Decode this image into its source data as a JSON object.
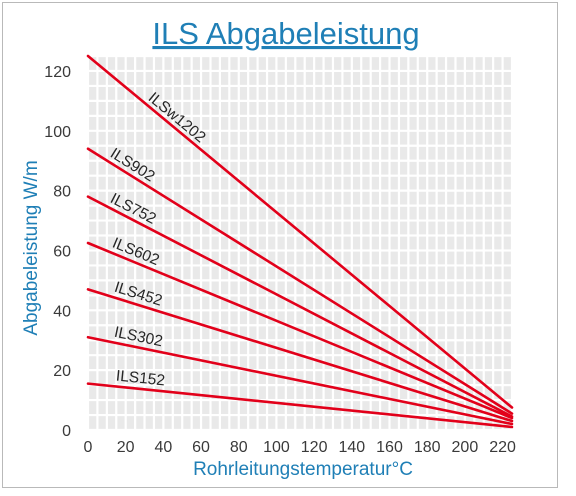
{
  "chart_data": {
    "type": "line",
    "title": "ILS Abgabeleistung",
    "xlabel": "Rohrleitungstemperatur°C",
    "ylabel": "Abgabeleistung W/m",
    "xlim": [
      0,
      225
    ],
    "ylim": [
      0,
      125
    ],
    "x_ticks": [
      "0",
      "20",
      "40",
      "60",
      "80",
      "100",
      "120",
      "140",
      "160",
      "180",
      "200",
      "220"
    ],
    "y_ticks": [
      "0",
      "20",
      "40",
      "60",
      "80",
      "100",
      "120"
    ],
    "grid": true,
    "legend": "none",
    "series": [
      {
        "name": "ILSw1202",
        "x": [
          0,
          225
        ],
        "y": [
          125,
          7.5
        ],
        "color": "#e2001a"
      },
      {
        "name": "ILS902",
        "x": [
          0,
          225
        ],
        "y": [
          94,
          5.5
        ],
        "color": "#e2001a"
      },
      {
        "name": "ILS752",
        "x": [
          0,
          225
        ],
        "y": [
          78,
          4.5
        ],
        "color": "#e2001a"
      },
      {
        "name": "ILS602",
        "x": [
          0,
          225
        ],
        "y": [
          62.5,
          4
        ],
        "color": "#e2001a"
      },
      {
        "name": "ILS452",
        "x": [
          0,
          225
        ],
        "y": [
          47,
          3
        ],
        "color": "#e2001a"
      },
      {
        "name": "ILS302",
        "x": [
          0,
          225
        ],
        "y": [
          31,
          2
        ],
        "color": "#e2001a"
      },
      {
        "name": "ILS152",
        "x": [
          0,
          225
        ],
        "y": [
          15.5,
          1
        ],
        "color": "#e2001a"
      }
    ]
  }
}
